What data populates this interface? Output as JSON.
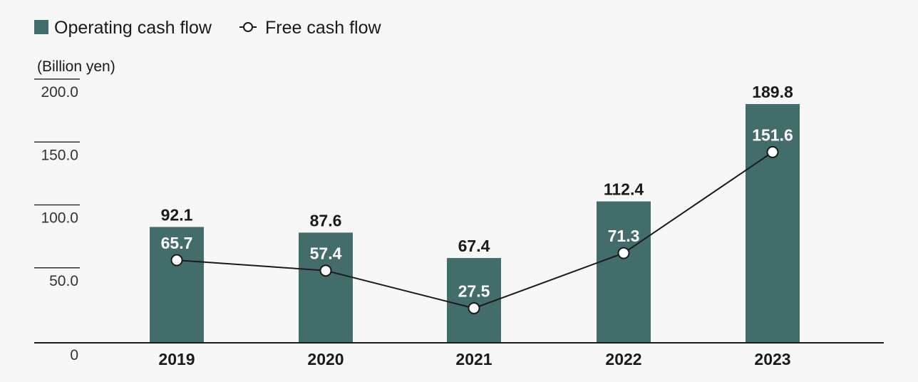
{
  "chart_data": {
    "type": "bar",
    "categories": [
      "2019",
      "2020",
      "2021",
      "2022",
      "2023"
    ],
    "series": [
      {
        "name": "Operating cash flow",
        "type": "bar",
        "values": [
          92.1,
          87.6,
          67.4,
          112.4,
          189.8
        ]
      },
      {
        "name": "Free cash flow",
        "type": "line",
        "values": [
          65.7,
          57.4,
          27.5,
          71.3,
          151.6
        ]
      }
    ],
    "ylabel": "(Billion yen)",
    "yticks": [
      "0",
      "50.0",
      "100.0",
      "150.0",
      "200.0"
    ],
    "ytick_values": [
      0,
      50,
      100,
      150,
      200
    ],
    "ylim": [
      0,
      200
    ],
    "legend": "top-left",
    "grid": false
  },
  "colors": {
    "bar": "#426d6a",
    "line": "#1a1a1a",
    "marker_fill": "#ffffff",
    "axis": "#1a1a1a"
  }
}
